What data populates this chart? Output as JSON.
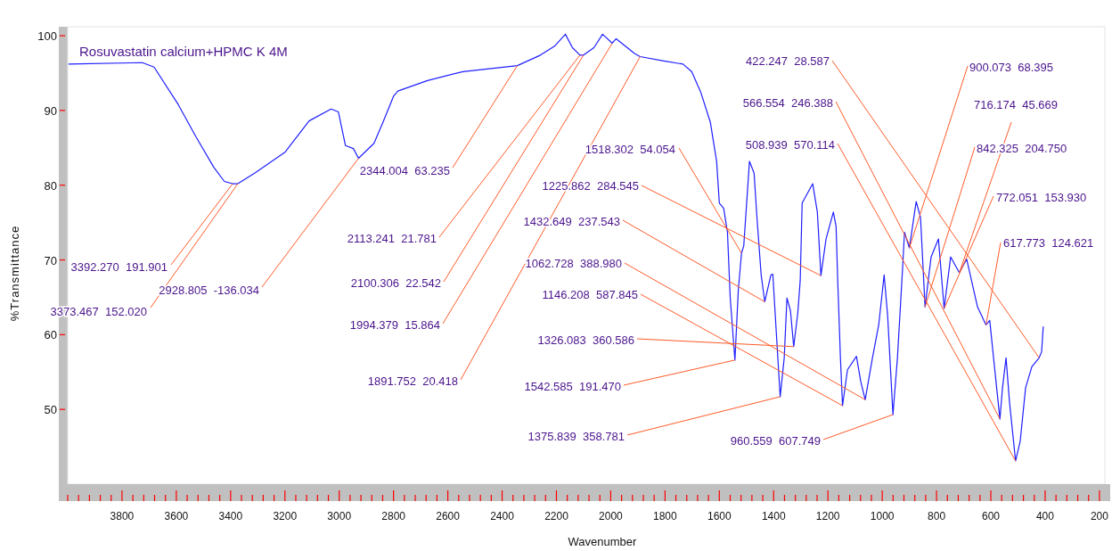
{
  "chart_data": {
    "type": "line",
    "title": "Rosuvastatin calcium+HPMC K 4M",
    "xlabel": "Wavenumber",
    "ylabel": "%Transmittance",
    "x": [
      3997,
      3725,
      3682,
      3593,
      3528,
      3462,
      3423,
      3392.27,
      3373.467,
      3308,
      3200,
      3111,
      3030,
      3003,
      2977,
      2948,
      2928.805,
      2872,
      2839,
      2800,
      2784,
      2675,
      2544,
      2344.004,
      2259,
      2207,
      2167,
      2141,
      2113.241,
      2100.306,
      2062,
      2030,
      1994.379,
      1980,
      1911,
      1891.752,
      1800,
      1734,
      1702,
      1669,
      1633,
      1610,
      1600,
      1584,
      1570,
      1560,
      1542.585,
      1530,
      1518.302,
      1510,
      1489,
      1472,
      1462,
      1446,
      1432.649,
      1410,
      1403,
      1393,
      1375.839,
      1361,
      1351,
      1338,
      1326.083,
      1311,
      1302,
      1295,
      1256,
      1239,
      1225.862,
      1207,
      1180,
      1170,
      1164,
      1154,
      1146.208,
      1128,
      1095,
      1079,
      1062.728,
      1036,
      1013,
      993,
      980,
      960.559,
      944,
      925,
      918,
      900.073,
      875,
      859,
      842.325,
      820,
      793,
      772.051,
      748,
      716.174,
      689,
      649,
      617.773,
      604,
      590,
      566.554,
      557,
      544,
      531,
      508.939,
      492,
      472,
      449,
      422.247,
      413,
      407
    ],
    "series": [
      {
        "color": "#1f1fff",
        "values": [
          96.2,
          96.4,
          95.8,
          90.8,
          86.5,
          82.4,
          80.5,
          80.2,
          80.2,
          81.7,
          84.4,
          88.6,
          90.2,
          89.8,
          85.3,
          84.9,
          83.6,
          85.6,
          88.4,
          91.9,
          92.6,
          94.0,
          95.2,
          96.0,
          97.4,
          98.6,
          100.2,
          98.4,
          97.4,
          97.4,
          98.4,
          100.2,
          99.0,
          99.6,
          97.6,
          97.2,
          96.6,
          96.2,
          95.2,
          92.5,
          88.4,
          83.2,
          77.6,
          76.9,
          73.7,
          65.0,
          56.6,
          66.0,
          70.9,
          71.9,
          83.2,
          81.6,
          76.0,
          68.0,
          64.4,
          68.0,
          68.1,
          62.0,
          51.7,
          56.9,
          64.9,
          63.2,
          58.4,
          62.9,
          67.3,
          77.6,
          80.2,
          76.4,
          67.9,
          72.8,
          76.4,
          74.5,
          67.3,
          56.9,
          50.5,
          55.3,
          57.1,
          53.7,
          51.3,
          56.9,
          61.3,
          68.0,
          62.5,
          49.3,
          56.9,
          68.9,
          73.7,
          71.6,
          77.8,
          75.7,
          63.7,
          70.4,
          72.8,
          63.5,
          70.4,
          68.3,
          70.1,
          63.7,
          61.3,
          61.9,
          56.9,
          48.7,
          52.9,
          56.9,
          50.9,
          43.1,
          45.7,
          52.9,
          55.7,
          56.9,
          57.7,
          61.1
        ]
      }
    ],
    "xlim": [
      4000,
      180
    ],
    "ylim": [
      40,
      101.2
    ],
    "xticks": [
      {
        "value": 4000,
        "label": null
      },
      {
        "value": 3960,
        "label": null
      },
      {
        "value": 3920,
        "label": null
      },
      {
        "value": 3880,
        "label": null
      },
      {
        "value": 3840,
        "label": null
      },
      3800,
      {
        "value": 3760,
        "label": null
      },
      {
        "value": 3720,
        "label": null
      },
      {
        "value": 3680,
        "label": null
      },
      {
        "value": 3640,
        "label": null
      },
      3600,
      {
        "value": 3560,
        "label": null
      },
      {
        "value": 3520,
        "label": null
      },
      {
        "value": 3480,
        "label": null
      },
      {
        "value": 3440,
        "label": null
      },
      3400,
      {
        "value": 3360,
        "label": null
      },
      {
        "value": 3320,
        "label": null
      },
      {
        "value": 3280,
        "label": null
      },
      {
        "value": 3240,
        "label": null
      },
      3200,
      {
        "value": 3160,
        "label": null
      },
      {
        "value": 3120,
        "label": null
      },
      {
        "value": 3080,
        "label": null
      },
      {
        "value": 3040,
        "label": null
      },
      3000,
      {
        "value": 2960,
        "label": null
      },
      {
        "value": 2920,
        "label": null
      },
      {
        "value": 2880,
        "label": null
      },
      {
        "value": 2840,
        "label": null
      },
      2800,
      {
        "value": 2760,
        "label": null
      },
      {
        "value": 2720,
        "label": null
      },
      {
        "value": 2680,
        "label": null
      },
      {
        "value": 2640,
        "label": null
      },
      2600,
      {
        "value": 2560,
        "label": null
      },
      {
        "value": 2520,
        "label": null
      },
      {
        "value": 2480,
        "label": null
      },
      {
        "value": 2440,
        "label": null
      },
      2400,
      {
        "value": 2360,
        "label": null
      },
      {
        "value": 2320,
        "label": null
      },
      {
        "value": 2280,
        "label": null
      },
      {
        "value": 2240,
        "label": null
      },
      2200,
      {
        "value": 2160,
        "label": null
      },
      {
        "value": 2120,
        "label": null
      },
      {
        "value": 2080,
        "label": null
      },
      {
        "value": 2040,
        "label": null
      },
      2000,
      {
        "value": 1960,
        "label": null
      },
      {
        "value": 1920,
        "label": null
      },
      {
        "value": 1880,
        "label": null
      },
      {
        "value": 1840,
        "label": null
      },
      1800,
      {
        "value": 1760,
        "label": null
      },
      {
        "value": 1720,
        "label": null
      },
      {
        "value": 1680,
        "label": null
      },
      {
        "value": 1640,
        "label": null
      },
      1600,
      {
        "value": 1560,
        "label": null
      },
      {
        "value": 1520,
        "label": null
      },
      {
        "value": 1480,
        "label": null
      },
      {
        "value": 1440,
        "label": null
      },
      1400,
      {
        "value": 1360,
        "label": null
      },
      {
        "value": 1320,
        "label": null
      },
      {
        "value": 1280,
        "label": null
      },
      {
        "value": 1240,
        "label": null
      },
      1200,
      {
        "value": 1160,
        "label": null
      },
      {
        "value": 1120,
        "label": null
      },
      {
        "value": 1080,
        "label": null
      },
      {
        "value": 1040,
        "label": null
      },
      1000,
      {
        "value": 960,
        "label": null
      },
      {
        "value": 920,
        "label": null
      },
      {
        "value": 880,
        "label": null
      },
      {
        "value": 840,
        "label": null
      },
      800,
      {
        "value": 760,
        "label": null
      },
      {
        "value": 720,
        "label": null
      },
      {
        "value": 680,
        "label": null
      },
      {
        "value": 640,
        "label": null
      },
      600,
      {
        "value": 560,
        "label": null
      },
      {
        "value": 520,
        "label": null
      },
      {
        "value": 480,
        "label": null
      },
      {
        "value": 440,
        "label": null
      },
      400,
      {
        "value": 360,
        "label": null
      },
      {
        "value": 320,
        "label": null
      },
      {
        "value": 280,
        "label": null
      },
      {
        "value": 240,
        "label": null
      },
      200
    ],
    "yticks": [
      50,
      60,
      70,
      80,
      90,
      100
    ],
    "annotations": [
      {
        "text": "3392.270  191.901",
        "x": 3392.27,
        "y": 80.2
      },
      {
        "text": "3373.467  152.020",
        "x": 3373.467,
        "y": 80.2
      },
      {
        "text": "2928.805  -136.034",
        "x": 2928.805,
        "y": 83.6
      },
      {
        "text": "2344.004  63.235",
        "x": 2344.004,
        "y": 96.0
      },
      {
        "text": "2113.241  21.781",
        "x": 2113.241,
        "y": 97.4
      },
      {
        "text": "2100.306  22.542",
        "x": 2100.306,
        "y": 97.4
      },
      {
        "text": "1994.379  15.864",
        "x": 1994.379,
        "y": 99.0
      },
      {
        "text": "1891.752  20.418",
        "x": 1891.752,
        "y": 97.2
      },
      {
        "text": "1518.302  54.054",
        "x": 1518.302,
        "y": 70.9
      },
      {
        "text": "1225.862  284.545",
        "x": 1225.862,
        "y": 67.9
      },
      {
        "text": "1432.649  237.543",
        "x": 1432.649,
        "y": 64.4
      },
      {
        "text": "1062.728  388.980",
        "x": 1062.728,
        "y": 51.3
      },
      {
        "text": "1146.208  587.845",
        "x": 1146.208,
        "y": 50.5
      },
      {
        "text": "1326.083  360.586",
        "x": 1326.083,
        "y": 58.4
      },
      {
        "text": "1542.585  191.470",
        "x": 1542.585,
        "y": 56.6
      },
      {
        "text": "1375.839  358.781",
        "x": 1375.839,
        "y": 51.7
      },
      {
        "text": "960.559  607.749",
        "x": 960.559,
        "y": 49.3
      },
      {
        "text": "422.247  28.587",
        "x": 422.247,
        "y": 56.9
      },
      {
        "text": "566.554  246.388",
        "x": 566.554,
        "y": 48.7
      },
      {
        "text": "508.939  570.114",
        "x": 508.939,
        "y": 43.1
      },
      {
        "text": "900.073  68.395",
        "x": 900.073,
        "y": 71.6
      },
      {
        "text": "716.174  45.669",
        "x": 716.174,
        "y": 68.3
      },
      {
        "text": "842.325  204.750",
        "x": 842.325,
        "y": 63.7
      },
      {
        "text": "772.051  153.930",
        "x": 772.051,
        "y": 63.5
      },
      {
        "text": "617.773  124.621",
        "x": 617.773,
        "y": 61.3
      }
    ],
    "grid": false,
    "marker": "none",
    "line_style": "solid"
  }
}
